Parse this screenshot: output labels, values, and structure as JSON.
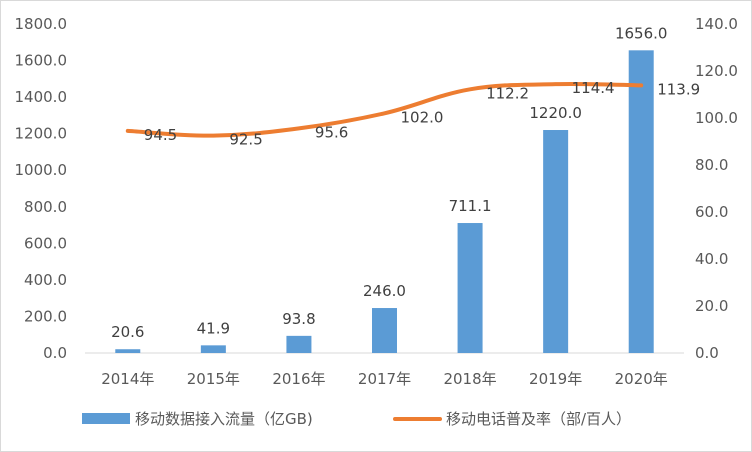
{
  "chart_data": {
    "type": "bar+line",
    "categories": [
      "2014年",
      "2015年",
      "2016年",
      "2017年",
      "2018年",
      "2019年",
      "2020年"
    ],
    "series": [
      {
        "name": "移动数据接入流量（亿GB)",
        "type": "bar",
        "axis": "left",
        "color": "#5b9bd5",
        "values": [
          20.6,
          41.9,
          93.8,
          246.0,
          711.1,
          1220.0,
          1656.0
        ],
        "labels": [
          "20.6",
          "41.9",
          "93.8",
          "246.0",
          "711.1",
          "1220.0",
          "1656.0"
        ]
      },
      {
        "name": "移动电话普及率（部/百人）",
        "type": "line",
        "axis": "right",
        "color": "#ed7d31",
        "values": [
          94.5,
          92.5,
          95.6,
          102.0,
          112.2,
          114.4,
          113.9
        ],
        "labels": [
          "94.5",
          "92.5",
          "95.6",
          "102.0",
          "112.2",
          "114.4",
          "113.9"
        ]
      }
    ],
    "y_left": {
      "min": 0,
      "max": 1800,
      "step": 200,
      "ticks": [
        "0.0",
        "200.0",
        "400.0",
        "600.0",
        "800.0",
        "1000.0",
        "1200.0",
        "1400.0",
        "1600.0",
        "1800.0"
      ]
    },
    "y_right": {
      "min": 0,
      "max": 140,
      "step": 20,
      "ticks": [
        "0.0",
        "20.0",
        "40.0",
        "60.0",
        "80.0",
        "100.0",
        "120.0",
        "140.0"
      ]
    },
    "grid": false,
    "legend": "bottom"
  }
}
